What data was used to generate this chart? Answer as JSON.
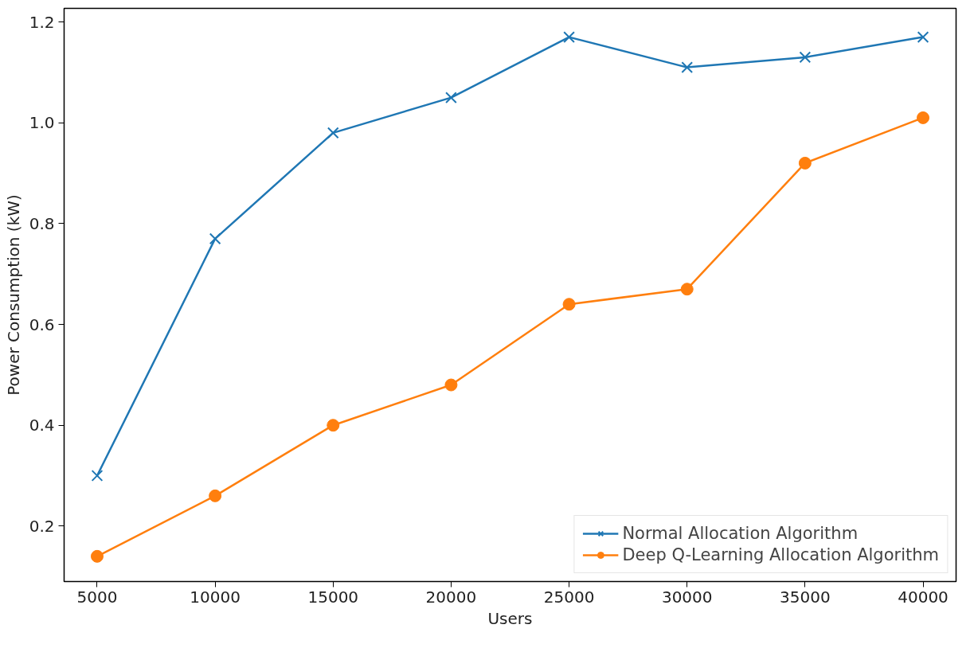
{
  "chart_data": {
    "type": "line",
    "xlabel": "Users",
    "ylabel": "Power Consumption (kW)",
    "x": [
      5000,
      10000,
      15000,
      20000,
      25000,
      30000,
      35000,
      40000
    ],
    "series": [
      {
        "name": "Normal Allocation Algorithm",
        "color": "#1f77b4",
        "marker": "cross",
        "values": [
          0.3,
          0.77,
          0.98,
          1.05,
          1.17,
          1.11,
          1.13,
          1.17
        ]
      },
      {
        "name": "Deep Q-Learning Allocation Algorithm",
        "color": "#ff7f0e",
        "marker": "circle",
        "values": [
          0.14,
          0.26,
          0.4,
          0.48,
          0.64,
          0.67,
          0.92,
          1.01
        ]
      }
    ],
    "xlim": [
      3600,
      41400
    ],
    "ylim": [
      0.09,
      1.227
    ],
    "xticks": [
      5000,
      10000,
      15000,
      20000,
      25000,
      30000,
      35000,
      40000
    ],
    "yticks": [
      {
        "value": 0.2,
        "label": "0.2"
      },
      {
        "value": 0.4,
        "label": "0.4"
      },
      {
        "value": 0.6,
        "label": "0.6"
      },
      {
        "value": 0.8,
        "label": "0.8"
      },
      {
        "value": 1.0,
        "label": "1.0"
      },
      {
        "value": 1.2,
        "label": "1.2"
      }
    ],
    "grid": false,
    "legend": "bottom right",
    "line_style": "solid"
  }
}
